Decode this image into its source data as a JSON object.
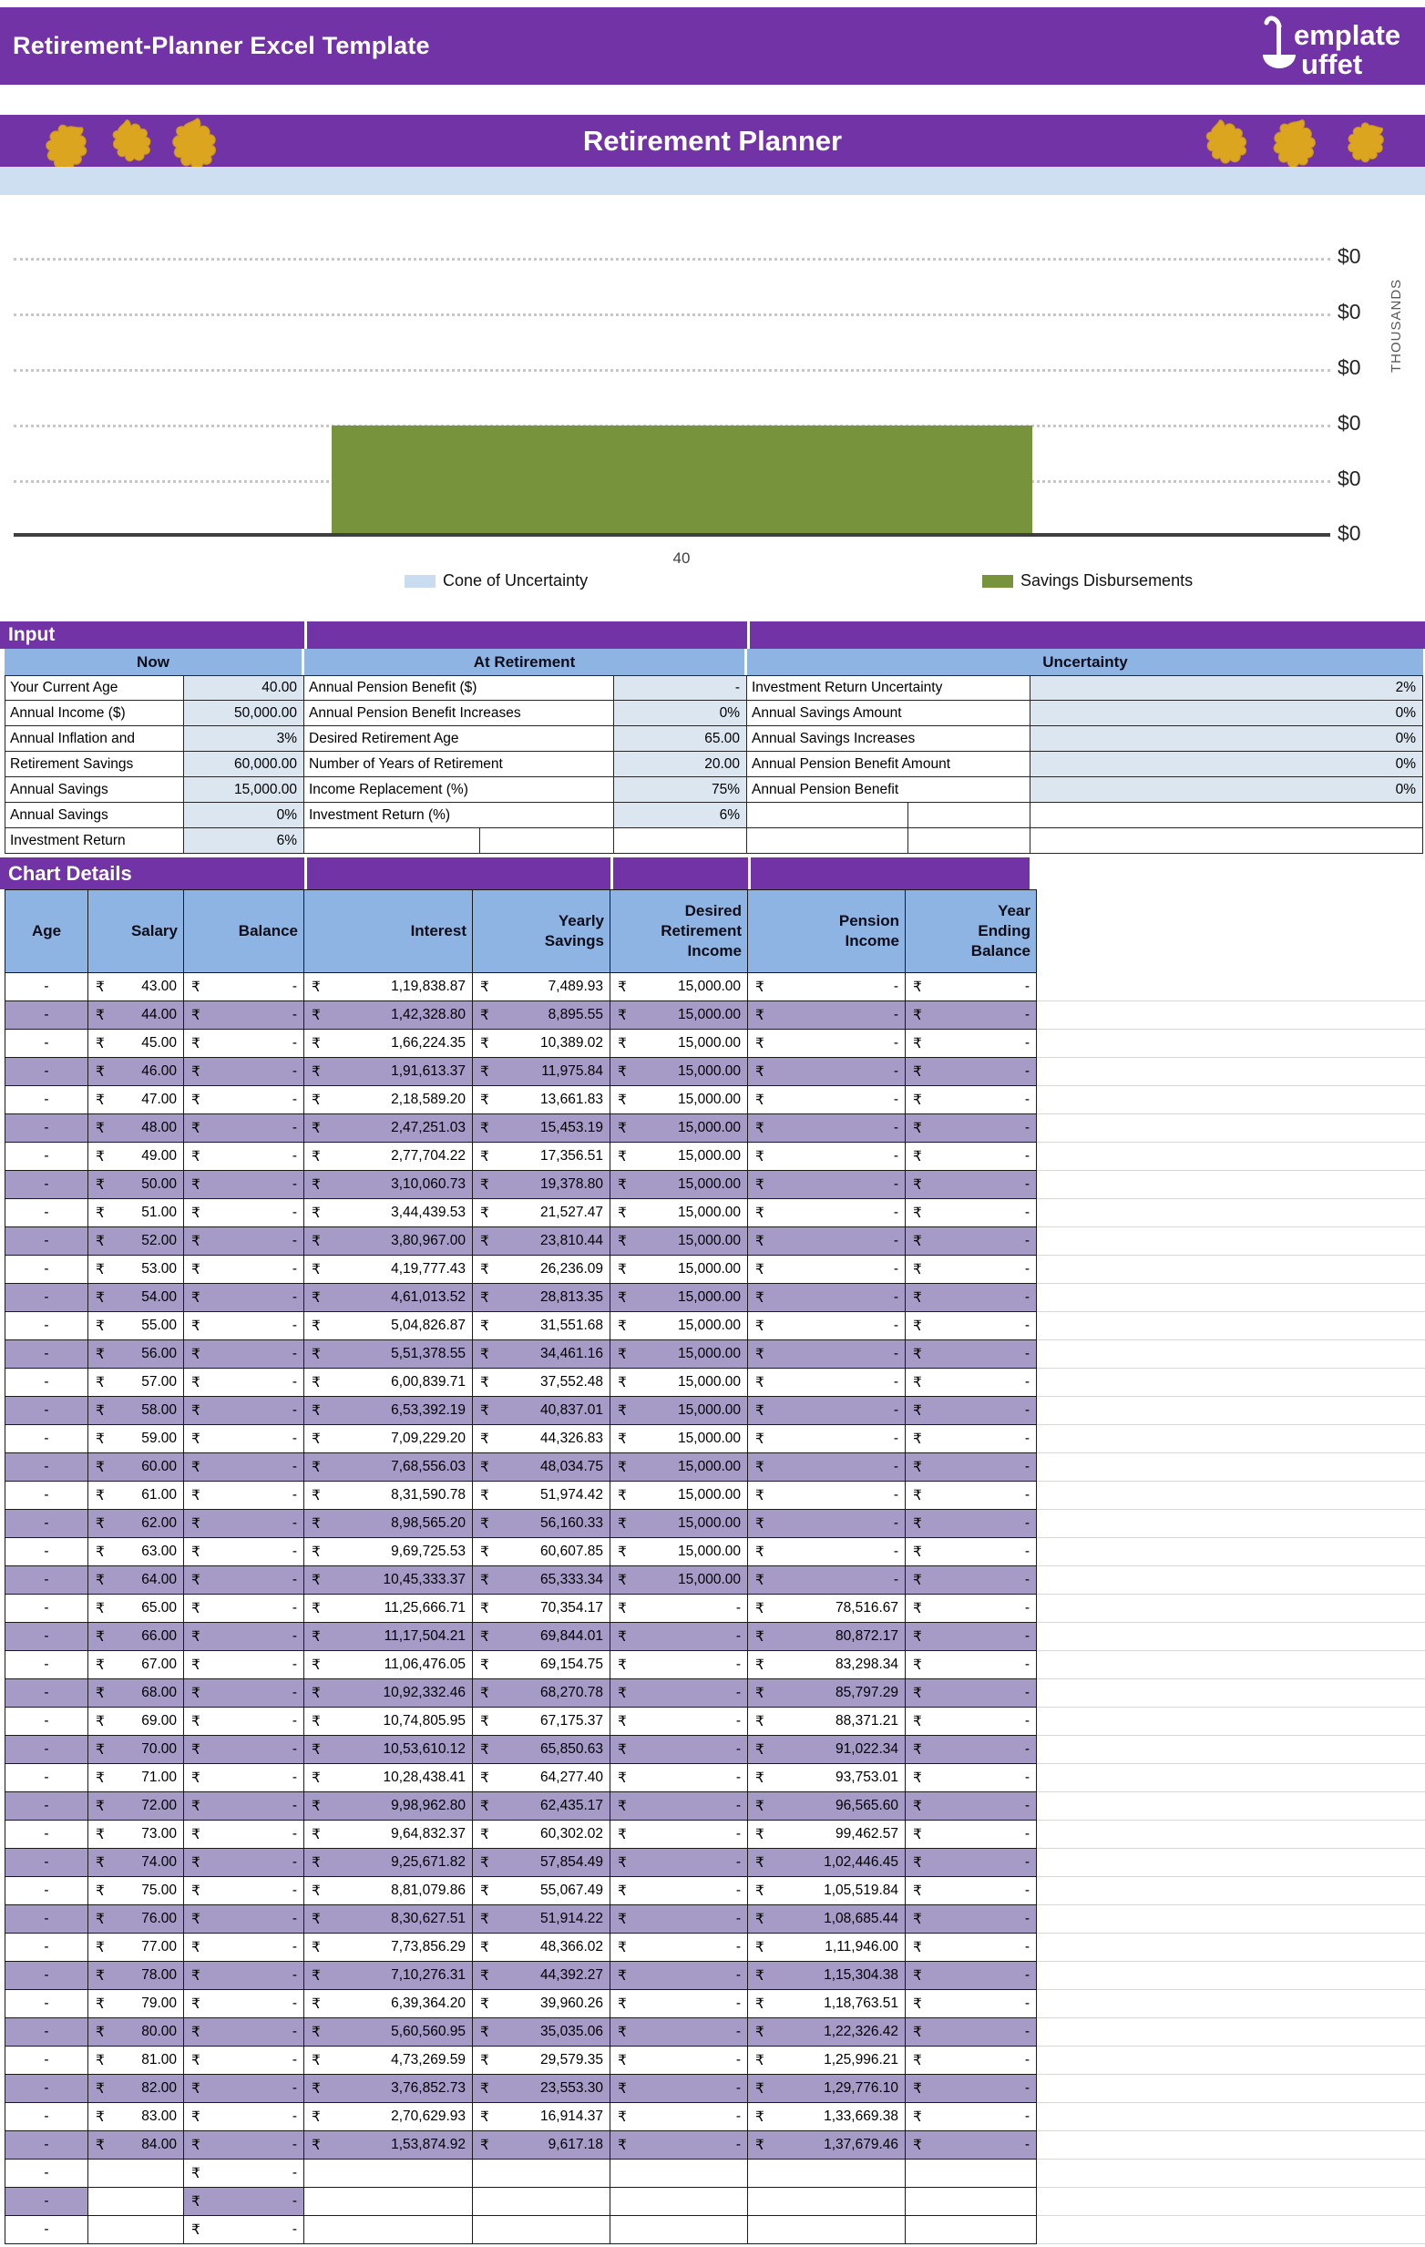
{
  "app_header": {
    "title": "Retirement-Planner Excel Template",
    "logo_top": "emplate",
    "logo_bottom": "uffet"
  },
  "banner": {
    "title": "Retirement Planner"
  },
  "chart_data": {
    "type": "bar",
    "title": "",
    "x_tick_labels": [
      "40"
    ],
    "y_tick_labels": [
      "$0",
      "$0",
      "$0",
      "$0",
      "$0",
      "$0"
    ],
    "y_axis_title": "THOUSANDS",
    "grid": "horizontal-dotted",
    "legend_position": "bottom",
    "series": [
      {
        "name": "Cone of Uncertainty",
        "color": "#C9DCF0",
        "values": [
          null
        ]
      },
      {
        "name": "Savings Disbursements",
        "color": "#77933C",
        "values": [
          2
        ],
        "note": "single bar at x=40 spanning 2 of 5 gridline intervals; all y tick labels render as $0 (thousands)"
      }
    ]
  },
  "input": {
    "section_title": "Input",
    "groups": [
      {
        "title": "Now",
        "rows": [
          {
            "label": "Your Current Age",
            "value": "40.00"
          },
          {
            "label": "Annual Income ($)",
            "value": "50,000.00"
          },
          {
            "label": "Annual Inflation and",
            "value": "3%"
          },
          {
            "label": "Retirement Savings",
            "value": "60,000.00"
          },
          {
            "label": "Annual Savings",
            "value": "15,000.00"
          },
          {
            "label": "Annual Savings",
            "value": "0%"
          },
          {
            "label": "Investment Return",
            "value": "6%"
          }
        ]
      },
      {
        "title": "At Retirement",
        "rows": [
          {
            "label": "Annual Pension Benefit ($)",
            "value": "-"
          },
          {
            "label": "Annual Pension Benefit Increases",
            "value": "0%"
          },
          {
            "label": "Desired Retirement Age",
            "value": "65.00"
          },
          {
            "label": "Number of Years of Retirement",
            "value": "20.00"
          },
          {
            "label": "Income Replacement (%)",
            "value": "75%"
          },
          {
            "label": "Investment Return (%)",
            "value": "6%"
          },
          {
            "label": "",
            "value": ""
          }
        ]
      },
      {
        "title": "Uncertainty",
        "rows": [
          {
            "label": "Investment Return Uncertainty",
            "value": "2%"
          },
          {
            "label": "Annual Savings Amount",
            "value": "0%"
          },
          {
            "label": "Annual Savings Increases",
            "value": "0%"
          },
          {
            "label": "Annual Pension Benefit Amount",
            "value": "0%"
          },
          {
            "label": "Annual Pension Benefit",
            "value": "0%"
          },
          {
            "label": "",
            "value": ""
          },
          {
            "label": "",
            "value": ""
          }
        ]
      }
    ]
  },
  "details": {
    "section_title": "Chart Details",
    "currency": "₹",
    "columns": [
      "Age",
      "Salary",
      "Balance",
      "Interest",
      "Yearly\nSavings",
      "Desired\nRetirement\nIncome",
      "Pension\nIncome",
      "Year\nEnding\nBalance"
    ],
    "rows": [
      [
        "-",
        "43.00",
        "-",
        "1,19,838.87",
        "7,489.93",
        "15,000.00",
        "-",
        "-"
      ],
      [
        "-",
        "44.00",
        "-",
        "1,42,328.80",
        "8,895.55",
        "15,000.00",
        "-",
        "-"
      ],
      [
        "-",
        "45.00",
        "-",
        "1,66,224.35",
        "10,389.02",
        "15,000.00",
        "-",
        "-"
      ],
      [
        "-",
        "46.00",
        "-",
        "1,91,613.37",
        "11,975.84",
        "15,000.00",
        "-",
        "-"
      ],
      [
        "-",
        "47.00",
        "-",
        "2,18,589.20",
        "13,661.83",
        "15,000.00",
        "-",
        "-"
      ],
      [
        "-",
        "48.00",
        "-",
        "2,47,251.03",
        "15,453.19",
        "15,000.00",
        "-",
        "-"
      ],
      [
        "-",
        "49.00",
        "-",
        "2,77,704.22",
        "17,356.51",
        "15,000.00",
        "-",
        "-"
      ],
      [
        "-",
        "50.00",
        "-",
        "3,10,060.73",
        "19,378.80",
        "15,000.00",
        "-",
        "-"
      ],
      [
        "-",
        "51.00",
        "-",
        "3,44,439.53",
        "21,527.47",
        "15,000.00",
        "-",
        "-"
      ],
      [
        "-",
        "52.00",
        "-",
        "3,80,967.00",
        "23,810.44",
        "15,000.00",
        "-",
        "-"
      ],
      [
        "-",
        "53.00",
        "-",
        "4,19,777.43",
        "26,236.09",
        "15,000.00",
        "-",
        "-"
      ],
      [
        "-",
        "54.00",
        "-",
        "4,61,013.52",
        "28,813.35",
        "15,000.00",
        "-",
        "-"
      ],
      [
        "-",
        "55.00",
        "-",
        "5,04,826.87",
        "31,551.68",
        "15,000.00",
        "-",
        "-"
      ],
      [
        "-",
        "56.00",
        "-",
        "5,51,378.55",
        "34,461.16",
        "15,000.00",
        "-",
        "-"
      ],
      [
        "-",
        "57.00",
        "-",
        "6,00,839.71",
        "37,552.48",
        "15,000.00",
        "-",
        "-"
      ],
      [
        "-",
        "58.00",
        "-",
        "6,53,392.19",
        "40,837.01",
        "15,000.00",
        "-",
        "-"
      ],
      [
        "-",
        "59.00",
        "-",
        "7,09,229.20",
        "44,326.83",
        "15,000.00",
        "-",
        "-"
      ],
      [
        "-",
        "60.00",
        "-",
        "7,68,556.03",
        "48,034.75",
        "15,000.00",
        "-",
        "-"
      ],
      [
        "-",
        "61.00",
        "-",
        "8,31,590.78",
        "51,974.42",
        "15,000.00",
        "-",
        "-"
      ],
      [
        "-",
        "62.00",
        "-",
        "8,98,565.20",
        "56,160.33",
        "15,000.00",
        "-",
        "-"
      ],
      [
        "-",
        "63.00",
        "-",
        "9,69,725.53",
        "60,607.85",
        "15,000.00",
        "-",
        "-"
      ],
      [
        "-",
        "64.00",
        "-",
        "10,45,333.37",
        "65,333.34",
        "15,000.00",
        "-",
        "-"
      ],
      [
        "-",
        "65.00",
        "-",
        "11,25,666.71",
        "70,354.17",
        "-",
        "78,516.67",
        "-"
      ],
      [
        "-",
        "66.00",
        "-",
        "11,17,504.21",
        "69,844.01",
        "-",
        "80,872.17",
        "-"
      ],
      [
        "-",
        "67.00",
        "-",
        "11,06,476.05",
        "69,154.75",
        "-",
        "83,298.34",
        "-"
      ],
      [
        "-",
        "68.00",
        "-",
        "10,92,332.46",
        "68,270.78",
        "-",
        "85,797.29",
        "-"
      ],
      [
        "-",
        "69.00",
        "-",
        "10,74,805.95",
        "67,175.37",
        "-",
        "88,371.21",
        "-"
      ],
      [
        "-",
        "70.00",
        "-",
        "10,53,610.12",
        "65,850.63",
        "-",
        "91,022.34",
        "-"
      ],
      [
        "-",
        "71.00",
        "-",
        "10,28,438.41",
        "64,277.40",
        "-",
        "93,753.01",
        "-"
      ],
      [
        "-",
        "72.00",
        "-",
        "9,98,962.80",
        "62,435.17",
        "-",
        "96,565.60",
        "-"
      ],
      [
        "-",
        "73.00",
        "-",
        "9,64,832.37",
        "60,302.02",
        "-",
        "99,462.57",
        "-"
      ],
      [
        "-",
        "74.00",
        "-",
        "9,25,671.82",
        "57,854.49",
        "-",
        "1,02,446.45",
        "-"
      ],
      [
        "-",
        "75.00",
        "-",
        "8,81,079.86",
        "55,067.49",
        "-",
        "1,05,519.84",
        "-"
      ],
      [
        "-",
        "76.00",
        "-",
        "8,30,627.51",
        "51,914.22",
        "-",
        "1,08,685.44",
        "-"
      ],
      [
        "-",
        "77.00",
        "-",
        "7,73,856.29",
        "48,366.02",
        "-",
        "1,11,946.00",
        "-"
      ],
      [
        "-",
        "78.00",
        "-",
        "7,10,276.31",
        "44,392.27",
        "-",
        "1,15,304.38",
        "-"
      ],
      [
        "-",
        "79.00",
        "-",
        "6,39,364.20",
        "39,960.26",
        "-",
        "1,18,763.51",
        "-"
      ],
      [
        "-",
        "80.00",
        "-",
        "5,60,560.95",
        "35,035.06",
        "-",
        "1,22,326.42",
        "-"
      ],
      [
        "-",
        "81.00",
        "-",
        "4,73,269.59",
        "29,579.35",
        "-",
        "1,25,996.21",
        "-"
      ],
      [
        "-",
        "82.00",
        "-",
        "3,76,852.73",
        "23,553.30",
        "-",
        "1,29,776.10",
        "-"
      ],
      [
        "-",
        "83.00",
        "-",
        "2,70,629.93",
        "16,914.37",
        "-",
        "1,33,669.38",
        "-"
      ],
      [
        "-",
        "84.00",
        "-",
        "1,53,874.92",
        "9,617.18",
        "-",
        "1,37,679.46",
        "-"
      ],
      [
        "-",
        "",
        "-",
        "",
        "",
        "",
        "",
        ""
      ],
      [
        "-",
        "",
        "-",
        "",
        "",
        "",
        "",
        ""
      ],
      [
        "-",
        "",
        "-",
        "",
        "",
        "",
        "",
        ""
      ]
    ]
  },
  "colors": {
    "header_purple": "#7233A6",
    "band_purple": "#A69BC7",
    "header_blue": "#8EB4E3",
    "value_blue": "#DCE6F1",
    "bar_green": "#77933C",
    "cone_blue": "#C9DCF0",
    "leaf_gold": "#DBA51F"
  }
}
